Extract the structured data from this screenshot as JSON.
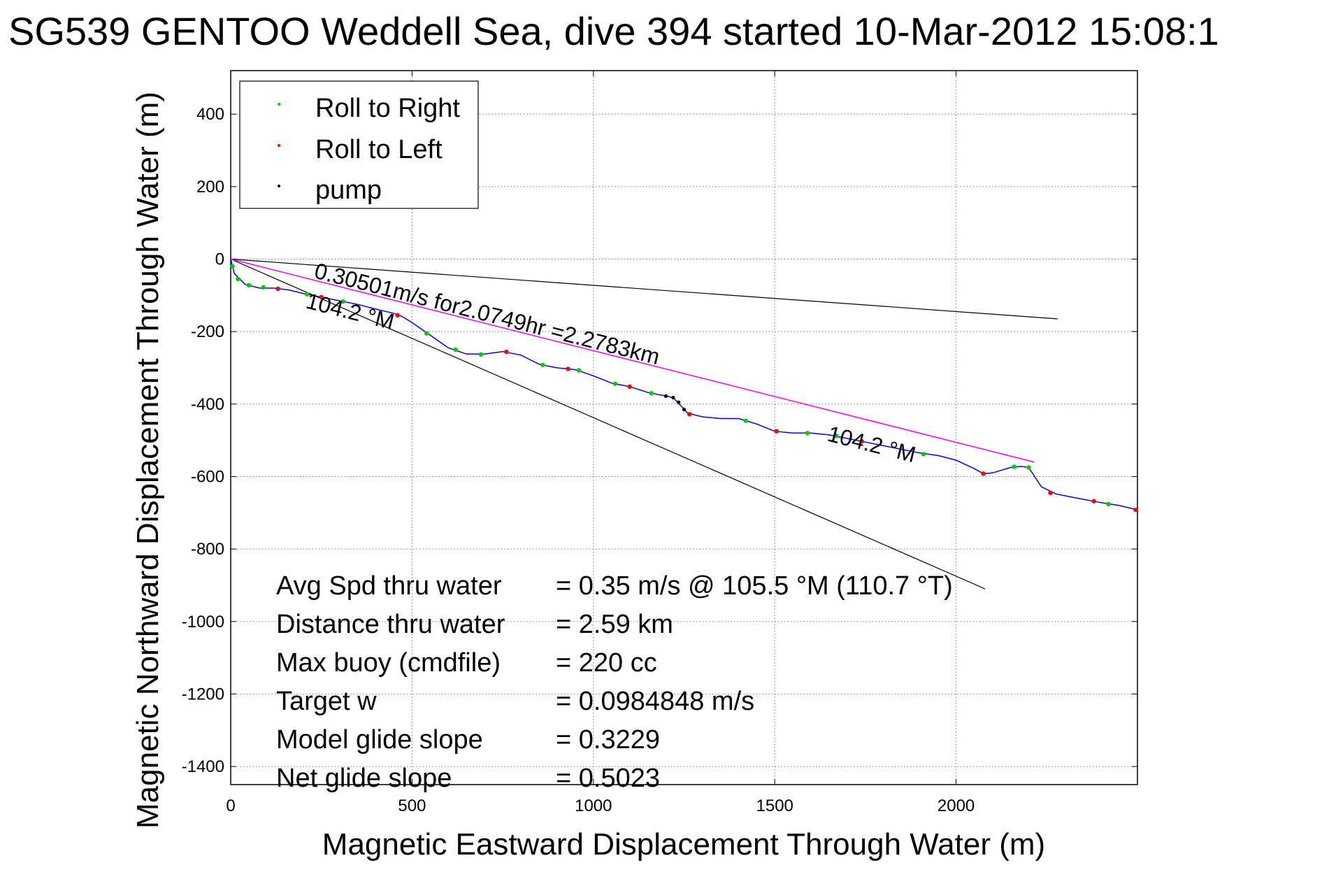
{
  "chart_data": {
    "type": "scatter",
    "title": "SG539 GENTOO Weddell Sea, dive 394 started 10-Mar-2012 15:08:1",
    "xlabel": "Magnetic Eastward Displacement Through Water (m)",
    "ylabel": "Magnetic Northward Displacement Through Water (m)",
    "xlim": [
      0,
      2500
    ],
    "ylim": [
      -1450,
      520
    ],
    "xticks": [
      0,
      500,
      1000,
      1500,
      2000
    ],
    "xtick_labels": [
      "0",
      "500",
      "1000",
      "1500",
      "2000"
    ],
    "yticks": [
      400,
      200,
      0,
      -200,
      -400,
      -600,
      -800,
      -1000,
      -1200,
      -1400
    ],
    "ytick_labels": [
      "400",
      "200",
      "0",
      "-200",
      "-400",
      "-600",
      "-800",
      "-1000",
      "-1200",
      "-1400"
    ],
    "grid": true,
    "legend": {
      "placement": "top-left",
      "entries": [
        {
          "label": "Roll to Right",
          "color": "#00cc00"
        },
        {
          "label": "Roll to Left",
          "color": "#ff0000"
        },
        {
          "label": "pump",
          "color": "#000000"
        }
      ]
    },
    "track": {
      "color": "#0000ff",
      "points": [
        [
          0,
          0
        ],
        [
          10,
          -40
        ],
        [
          40,
          -70
        ],
        [
          80,
          -80
        ],
        [
          120,
          -80
        ],
        [
          160,
          -85
        ],
        [
          200,
          -95
        ],
        [
          250,
          -105
        ],
        [
          300,
          -115
        ],
        [
          350,
          -125
        ],
        [
          400,
          -138
        ],
        [
          450,
          -150
        ],
        [
          470,
          -157
        ],
        [
          500,
          -175
        ],
        [
          550,
          -210
        ],
        [
          600,
          -245
        ],
        [
          650,
          -262
        ],
        [
          700,
          -262
        ],
        [
          750,
          -255
        ],
        [
          800,
          -265
        ],
        [
          850,
          -290
        ],
        [
          900,
          -300
        ],
        [
          950,
          -305
        ],
        [
          1000,
          -322
        ],
        [
          1050,
          -342
        ],
        [
          1100,
          -352
        ],
        [
          1150,
          -368
        ],
        [
          1200,
          -378
        ],
        [
          1220,
          -382
        ],
        [
          1260,
          -425
        ],
        [
          1300,
          -435
        ],
        [
          1350,
          -440
        ],
        [
          1400,
          -440
        ],
        [
          1450,
          -455
        ],
        [
          1500,
          -475
        ],
        [
          1550,
          -480
        ],
        [
          1600,
          -480
        ],
        [
          1650,
          -485
        ],
        [
          1700,
          -495
        ],
        [
          1750,
          -505
        ],
        [
          1800,
          -515
        ],
        [
          1850,
          -525
        ],
        [
          1900,
          -535
        ],
        [
          1950,
          -542
        ],
        [
          2000,
          -555
        ],
        [
          2050,
          -578
        ],
        [
          2075,
          -592
        ],
        [
          2100,
          -590
        ],
        [
          2150,
          -575
        ],
        [
          2180,
          -572
        ],
        [
          2200,
          -575
        ],
        [
          2235,
          -628
        ],
        [
          2275,
          -648
        ],
        [
          2325,
          -658
        ],
        [
          2400,
          -672
        ],
        [
          2450,
          -680
        ],
        [
          2500,
          -692
        ]
      ]
    },
    "roll_right_points": [
      [
        5,
        -20
      ],
      [
        20,
        -55
      ],
      [
        50,
        -72
      ],
      [
        90,
        -78
      ],
      [
        210,
        -97
      ],
      [
        310,
        -117
      ],
      [
        540,
        -205
      ],
      [
        620,
        -250
      ],
      [
        690,
        -263
      ],
      [
        860,
        -292
      ],
      [
        960,
        -307
      ],
      [
        1060,
        -344
      ],
      [
        1160,
        -370
      ],
      [
        1420,
        -446
      ],
      [
        1590,
        -480
      ],
      [
        1670,
        -488
      ],
      [
        1910,
        -538
      ],
      [
        2160,
        -573
      ],
      [
        2200,
        -575
      ],
      [
        2420,
        -676
      ]
    ],
    "roll_left_points": [
      [
        130,
        -82
      ],
      [
        250,
        -105
      ],
      [
        460,
        -155
      ],
      [
        760,
        -256
      ],
      [
        930,
        -303
      ],
      [
        1100,
        -352
      ],
      [
        1265,
        -428
      ],
      [
        1505,
        -475
      ],
      [
        1740,
        -503
      ],
      [
        2075,
        -592
      ],
      [
        2260,
        -645
      ],
      [
        2380,
        -668
      ],
      [
        2495,
        -692
      ]
    ],
    "pump_points": [
      [
        1200,
        -378
      ],
      [
        1220,
        -382
      ],
      [
        1235,
        -395
      ],
      [
        1250,
        -415
      ]
    ],
    "magenta_line": {
      "from": [
        0,
        0
      ],
      "to": [
        2215,
        -560
      ],
      "color": "#ff00ff"
    },
    "heading_lines": [
      {
        "from": [
          0,
          0
        ],
        "to": [
          2280,
          -165
        ],
        "color": "#000000"
      },
      {
        "from": [
          0,
          0
        ],
        "to": [
          2080,
          -910
        ],
        "color": "#000000"
      }
    ],
    "annotations": {
      "speed_label": "0.30501m/s for2.0749hr =2.2783km",
      "heading_start": "104.2 °M",
      "heading_end": "104.2 °M"
    },
    "stats": [
      {
        "label": "Avg Spd thru water",
        "value": "=  0.35 m/s @ 105.5 °M (110.7 °T)"
      },
      {
        "label": "Distance thru water",
        "value": "=  2.59 km"
      },
      {
        "label": "Max buoy (cmdfile)",
        "value": "= 220 cc"
      },
      {
        "label": "Target w",
        "value": "= 0.0984848 m/s"
      },
      {
        "label": "Model glide slope",
        "value": "= 0.3229"
      },
      {
        "label": "Net glide slope",
        "value": "= 0.5023"
      }
    ]
  }
}
